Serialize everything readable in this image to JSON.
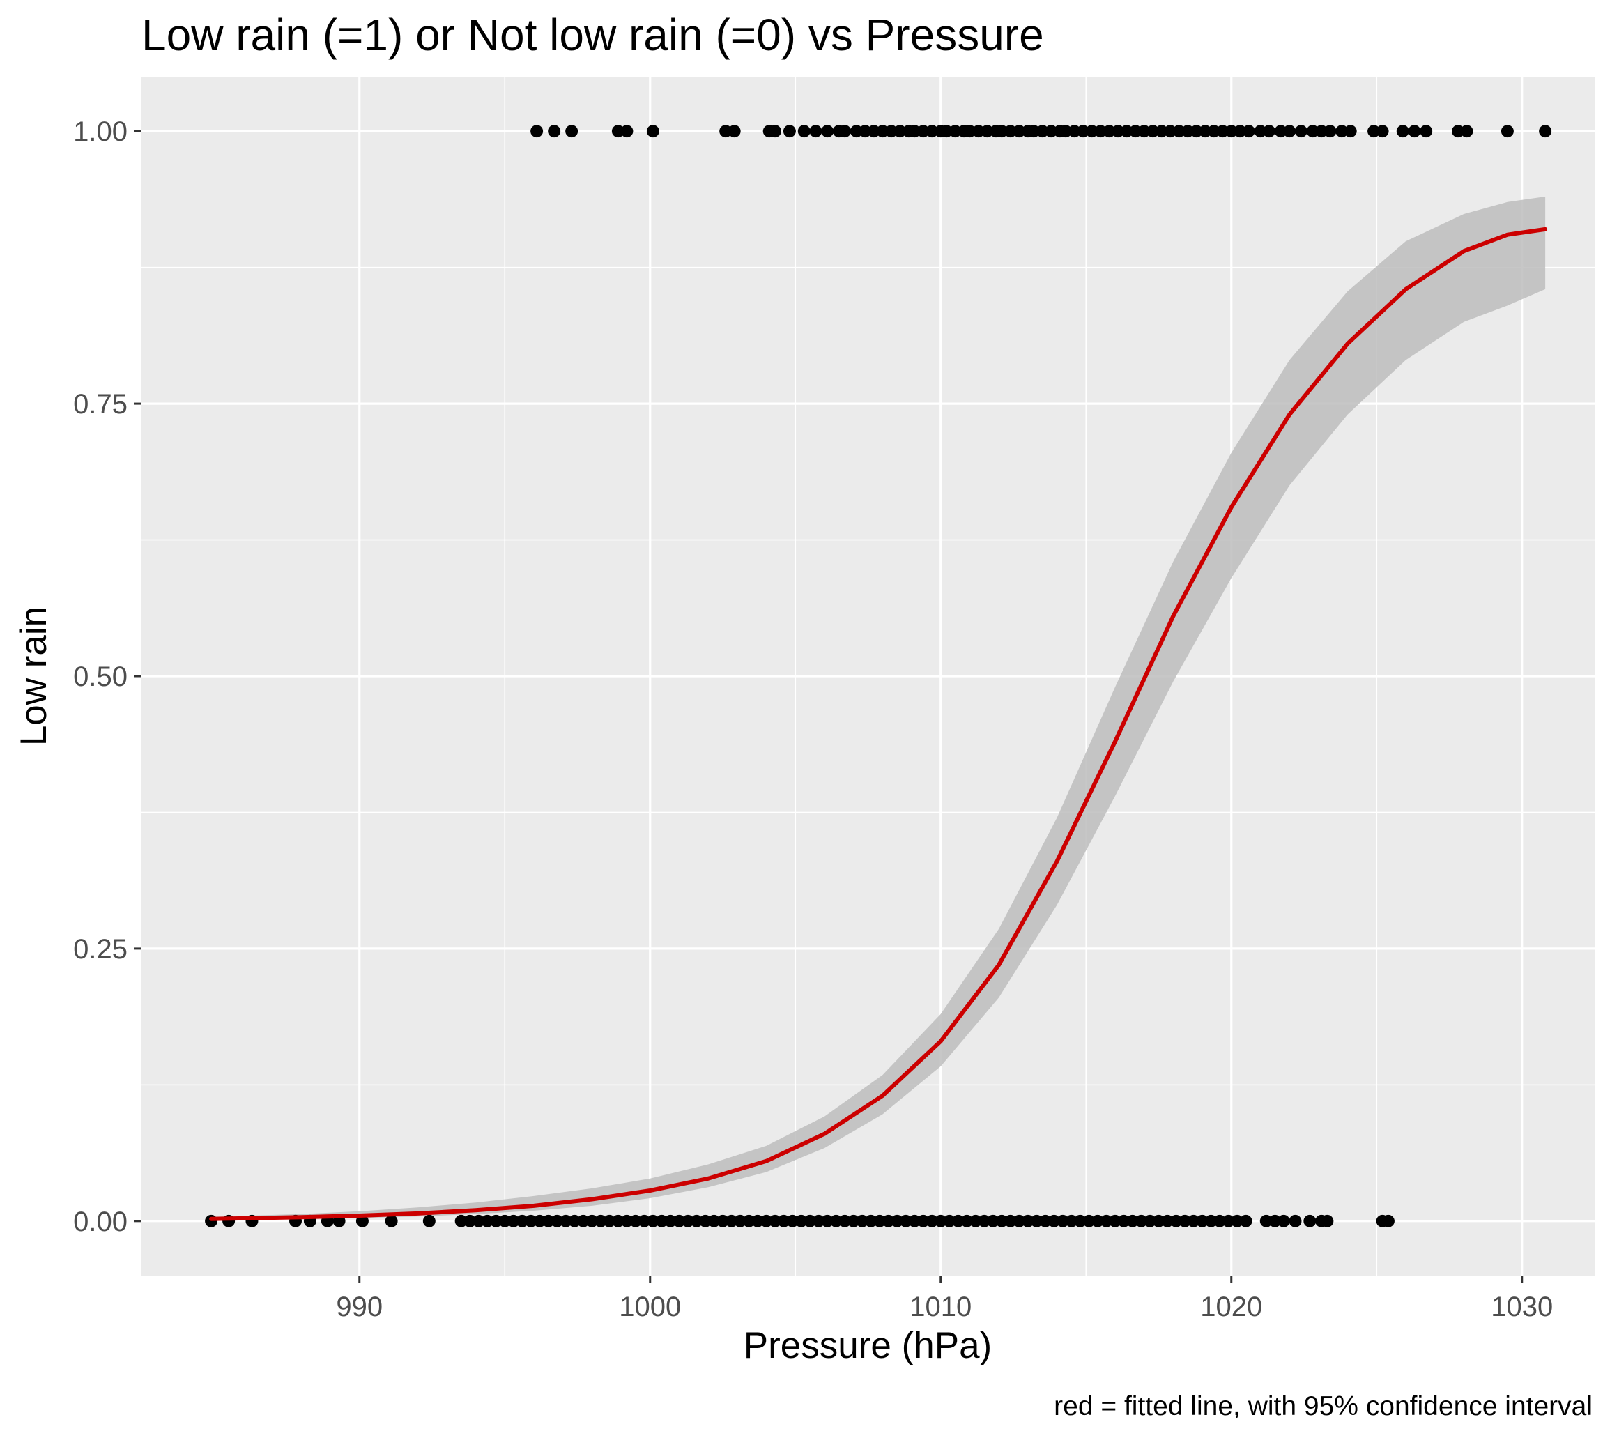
{
  "chart_data": {
    "type": "scatter",
    "title": "Low rain (=1) or Not low rain (=0) vs Pressure",
    "xlabel": "Pressure (hPa)",
    "ylabel": "Low rain",
    "caption": "red = fitted line, with 95% confidence interval",
    "xlim": [
      982.5,
      1032.5
    ],
    "ylim": [
      -0.05,
      1.05
    ],
    "x_ticks": [
      990,
      1000,
      1010,
      1020,
      1030
    ],
    "x_tick_labels": [
      "990",
      "1000",
      "1010",
      "1020",
      "1030"
    ],
    "y_ticks": [
      0,
      0.25,
      0.5,
      0.75,
      1
    ],
    "y_tick_labels": [
      "0.00",
      "0.25",
      "0.50",
      "0.75",
      "1.00"
    ],
    "grid": true,
    "colors": {
      "panel": "#ebebeb",
      "gridline": "#ffffff",
      "points": "#000000",
      "fit_line": "#cc0000",
      "confidence_band": "#bdbdbd"
    },
    "points_y1": [
      996.1,
      996.7,
      997.3,
      998.9,
      999.2,
      1000.1,
      1002.6,
      1002.9,
      1004.1,
      1004.3,
      1004.8,
      1005.3,
      1005.7,
      1006.1,
      1006.5,
      1006.7,
      1007.1,
      1007.4,
      1007.7,
      1008.0,
      1008.3,
      1008.6,
      1008.9,
      1009.1,
      1009.4,
      1009.7,
      1010.0,
      1010.2,
      1010.5,
      1010.8,
      1011.0,
      1011.3,
      1011.6,
      1011.9,
      1012.1,
      1012.4,
      1012.7,
      1013.0,
      1013.2,
      1013.5,
      1013.8,
      1014.1,
      1014.3,
      1014.6,
      1014.9,
      1015.2,
      1015.5,
      1015.8,
      1016.1,
      1016.4,
      1016.7,
      1017.0,
      1017.3,
      1017.6,
      1017.9,
      1018.2,
      1018.5,
      1018.8,
      1019.1,
      1019.4,
      1019.7,
      1020.0,
      1020.3,
      1020.6,
      1021.0,
      1021.3,
      1021.7,
      1022.0,
      1022.4,
      1022.8,
      1023.1,
      1023.4,
      1023.8,
      1024.1,
      1024.9,
      1025.2,
      1025.9,
      1026.3,
      1026.7,
      1027.8,
      1028.1,
      1029.5,
      1030.8
    ],
    "points_y0": [
      984.9,
      985.5,
      986.3,
      987.8,
      988.3,
      988.9,
      989.3,
      990.1,
      991.1,
      992.4,
      993.5,
      993.8,
      994.1,
      994.4,
      994.7,
      995.0,
      995.3,
      995.6,
      995.9,
      996.2,
      996.5,
      996.8,
      997.1,
      997.4,
      997.7,
      998.0,
      998.3,
      998.6,
      998.9,
      999.2,
      999.5,
      999.8,
      1000.1,
      1000.4,
      1000.7,
      1001.0,
      1001.3,
      1001.6,
      1001.9,
      1002.2,
      1002.5,
      1002.8,
      1003.1,
      1003.4,
      1003.7,
      1004.0,
      1004.3,
      1004.6,
      1004.9,
      1005.2,
      1005.5,
      1005.8,
      1006.1,
      1006.4,
      1006.7,
      1007.0,
      1007.3,
      1007.6,
      1007.9,
      1008.2,
      1008.5,
      1008.8,
      1009.1,
      1009.4,
      1009.7,
      1010.0,
      1010.3,
      1010.6,
      1010.9,
      1011.2,
      1011.5,
      1011.8,
      1012.1,
      1012.4,
      1012.7,
      1013.0,
      1013.3,
      1013.6,
      1013.9,
      1014.2,
      1014.5,
      1014.8,
      1015.1,
      1015.4,
      1015.7,
      1016.0,
      1016.3,
      1016.6,
      1016.9,
      1017.2,
      1017.5,
      1017.8,
      1018.1,
      1018.4,
      1018.7,
      1019.0,
      1019.3,
      1019.6,
      1019.9,
      1020.2,
      1020.5,
      1021.2,
      1021.5,
      1021.8,
      1022.2,
      1022.7,
      1023.1,
      1023.3,
      1025.2,
      1025.4
    ],
    "fit": {
      "x": [
        984.9,
        986,
        988,
        990,
        992,
        994,
        996,
        998,
        1000,
        1002,
        1004,
        1006,
        1008,
        1010,
        1012,
        1014,
        1016,
        1018,
        1020,
        1022,
        1024,
        1026,
        1028,
        1029.5,
        1030.8
      ],
      "y": [
        0.002,
        0.0025,
        0.0035,
        0.005,
        0.007,
        0.01,
        0.014,
        0.02,
        0.028,
        0.039,
        0.055,
        0.08,
        0.115,
        0.165,
        0.235,
        0.33,
        0.44,
        0.555,
        0.655,
        0.74,
        0.805,
        0.855,
        0.89,
        0.905,
        0.91
      ],
      "lower": [
        0.001,
        0.0012,
        0.0018,
        0.0028,
        0.0042,
        0.0065,
        0.0095,
        0.014,
        0.021,
        0.031,
        0.045,
        0.067,
        0.098,
        0.142,
        0.205,
        0.29,
        0.39,
        0.495,
        0.59,
        0.675,
        0.74,
        0.79,
        0.825,
        0.84,
        0.855
      ],
      "upper": [
        0.004,
        0.0048,
        0.0065,
        0.009,
        0.0125,
        0.017,
        0.023,
        0.03,
        0.039,
        0.052,
        0.069,
        0.096,
        0.134,
        0.19,
        0.268,
        0.37,
        0.49,
        0.605,
        0.705,
        0.79,
        0.853,
        0.899,
        0.924,
        0.935,
        0.94
      ]
    }
  }
}
